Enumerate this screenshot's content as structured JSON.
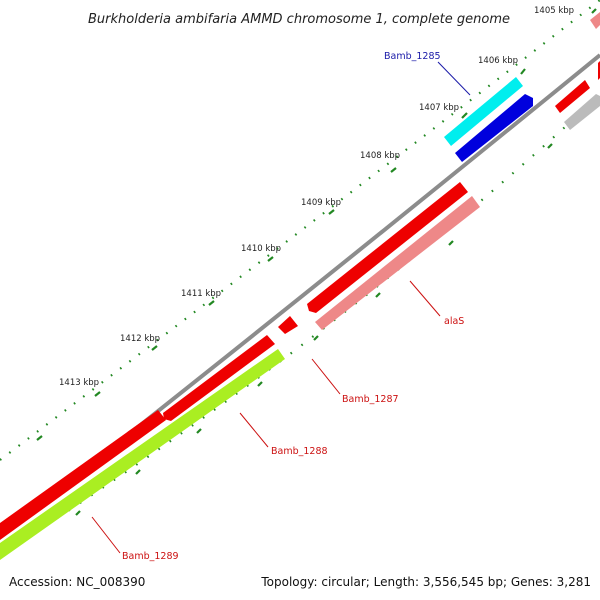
{
  "title": "Burkholderia ambifaria AMMD chromosome 1, complete genome",
  "footer": {
    "accession": "Accession: NC_008390",
    "topology": "Topology: circular; Length: 3,556,545 bp; Genes: 3,281"
  },
  "scale": {
    "labels": [
      "1405 kbp",
      "1406 kbp",
      "1407 kbp",
      "1408 kbp",
      "1409 kbp",
      "1410 kbp",
      "1411 kbp",
      "1412 kbp",
      "1413 kbp"
    ]
  },
  "genes": [
    {
      "name": "Bamb_1285",
      "color": "#1a1aa8"
    },
    {
      "name": "alaS",
      "color": "#cc1111"
    },
    {
      "name": "Bamb_1287",
      "color": "#cc1111"
    },
    {
      "name": "Bamb_1288",
      "color": "#cc1111"
    },
    {
      "name": "Bamb_1289",
      "color": "#cc1111"
    }
  ],
  "colors": {
    "backbone": "#8c8c8c",
    "cds_forward": "#ee0000",
    "cds_reverse": "#ee0000",
    "cds_light": "#ee8888",
    "rrna_cyan": "#00eeee",
    "blue_feature": "#0000dd",
    "lime_feature": "#aaee22",
    "gray_feature": "#bbbbbb",
    "tick_green": "#228822"
  }
}
